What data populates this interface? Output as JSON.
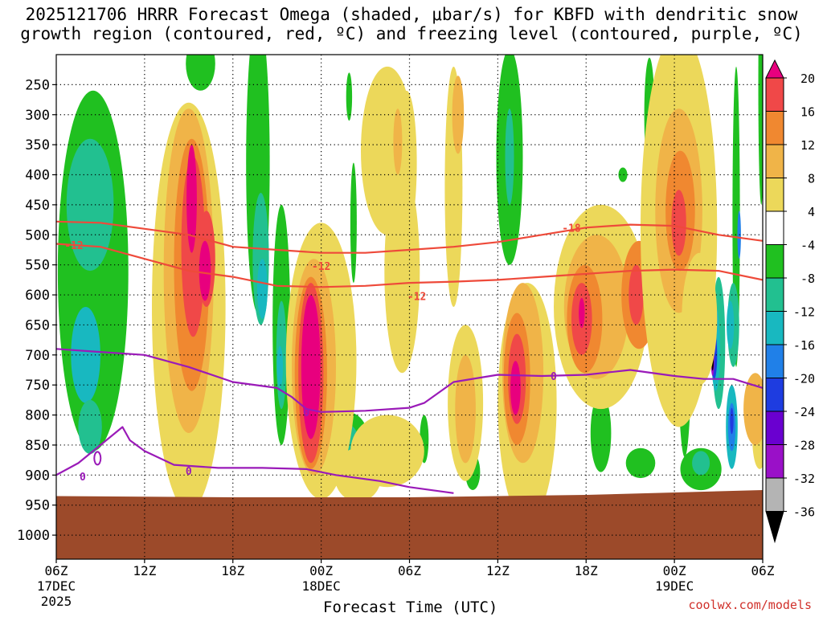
{
  "title": {
    "line1": "2025121706 HRRR Forecast Omega (shaded, μbar/s) for KBFD with dendritic snow",
    "line2": "growth region (contoured, red, ºC) and freezing level (contoured, purple, ºC)"
  },
  "colors": {
    "terrain": "#9c4a2a",
    "dgz_contour": "#ee4a3a",
    "freezing_contour": "#9a1ab8",
    "credit": "#d0302a"
  },
  "chart_data": {
    "type": "heatmap",
    "title": "2025121706 HRRR Forecast Omega (shaded, μbar/s) for KBFD with dendritic snow growth region (contoured, red, ºC) and freezing level (contoured, purple, ºC)",
    "xlabel": "Forecast Time (UTC)",
    "ylabel": "",
    "x_ticks": [
      {
        "hour": 0,
        "label": "06Z",
        "sub1": "17DEC",
        "sub2": "2025"
      },
      {
        "hour": 6,
        "label": "12Z",
        "sub1": "",
        "sub2": ""
      },
      {
        "hour": 12,
        "label": "18Z",
        "sub1": "",
        "sub2": ""
      },
      {
        "hour": 18,
        "label": "00Z",
        "sub1": "18DEC",
        "sub2": ""
      },
      {
        "hour": 24,
        "label": "06Z",
        "sub1": "",
        "sub2": ""
      },
      {
        "hour": 30,
        "label": "12Z",
        "sub1": "",
        "sub2": ""
      },
      {
        "hour": 36,
        "label": "18Z",
        "sub1": "",
        "sub2": ""
      },
      {
        "hour": 42,
        "label": "00Z",
        "sub1": "19DEC",
        "sub2": ""
      },
      {
        "hour": 48,
        "label": "06Z",
        "sub1": "",
        "sub2": ""
      }
    ],
    "xlim": [
      0,
      48
    ],
    "y_ticks": [
      250,
      300,
      350,
      400,
      450,
      500,
      550,
      600,
      650,
      700,
      750,
      800,
      850,
      900,
      950,
      1000
    ],
    "ylim": [
      1040,
      200
    ],
    "colorbar": {
      "labels": [
        "20",
        "16",
        "12",
        "8",
        "4",
        "-4",
        "-8",
        "-12",
        "-16",
        "-20",
        "-24",
        "-28",
        "-32",
        "-36"
      ],
      "levels": [
        20,
        16,
        12,
        8,
        4,
        -4,
        -8,
        -12,
        -16,
        -20,
        -24,
        -28,
        -32,
        -36
      ],
      "colors": [
        "#e8007e",
        "#f04848",
        "#f08830",
        "#f0b448",
        "#ecd85a",
        "#ffffff",
        "#20c020",
        "#22c090",
        "#18b8c0",
        "#2080e8",
        "#1e3ce0",
        "#6a00d0",
        "#9a10c8",
        "#b4b4b4",
        "#000000"
      ]
    },
    "dgz_contours": [
      {
        "label": "-12",
        "points": [
          [
            0,
            515
          ],
          [
            3,
            520
          ],
          [
            6,
            540
          ],
          [
            9,
            560
          ],
          [
            12,
            570
          ],
          [
            15,
            585
          ],
          [
            18,
            587
          ],
          [
            21,
            585
          ],
          [
            24,
            580
          ],
          [
            27,
            578
          ],
          [
            30,
            575
          ],
          [
            33,
            570
          ],
          [
            36,
            565
          ],
          [
            39,
            560
          ],
          [
            42,
            558
          ],
          [
            45,
            560
          ],
          [
            48,
            575
          ]
        ]
      },
      {
        "label": "-18",
        "points": [
          [
            0,
            478
          ],
          [
            3,
            480
          ],
          [
            6,
            490
          ],
          [
            9,
            500
          ],
          [
            12,
            520
          ],
          [
            15,
            525
          ],
          [
            18,
            530
          ],
          [
            21,
            530
          ],
          [
            24,
            525
          ],
          [
            27,
            520
          ],
          [
            30,
            512
          ],
          [
            33,
            500
          ],
          [
            36,
            488
          ],
          [
            39,
            483
          ],
          [
            42,
            485
          ],
          [
            45,
            500
          ],
          [
            48,
            510
          ]
        ]
      }
    ],
    "freezing_contours": [
      {
        "label": "0",
        "points": [
          [
            0,
            690
          ],
          [
            3,
            695
          ],
          [
            6,
            700
          ],
          [
            9,
            720
          ],
          [
            12,
            745
          ],
          [
            15,
            755
          ],
          [
            16,
            770
          ],
          [
            17,
            790
          ],
          [
            18,
            795
          ],
          [
            21,
            793
          ],
          [
            24,
            788
          ],
          [
            25,
            780
          ],
          [
            27,
            745
          ],
          [
            30,
            733
          ],
          [
            33,
            735
          ],
          [
            36,
            733
          ],
          [
            39,
            725
          ],
          [
            42,
            735
          ],
          [
            44,
            740
          ],
          [
            46,
            740
          ],
          [
            48,
            755
          ]
        ]
      },
      {
        "label": "0",
        "points": [
          [
            0,
            900
          ],
          [
            1.5,
            880
          ],
          [
            3,
            850
          ],
          [
            4.5,
            820
          ],
          [
            5,
            842
          ],
          [
            6,
            860
          ],
          [
            8,
            883
          ],
          [
            11,
            888
          ],
          [
            14,
            888
          ],
          [
            17,
            890
          ],
          [
            19,
            900
          ],
          [
            22,
            910
          ],
          [
            24,
            920
          ],
          [
            27,
            930
          ]
        ]
      }
    ],
    "annotations": [
      "-12",
      "-18",
      "-12",
      "-12",
      "0",
      "0",
      "0",
      "0"
    ],
    "surface_pressure": 935
  },
  "credit": "coolwx.com/models"
}
